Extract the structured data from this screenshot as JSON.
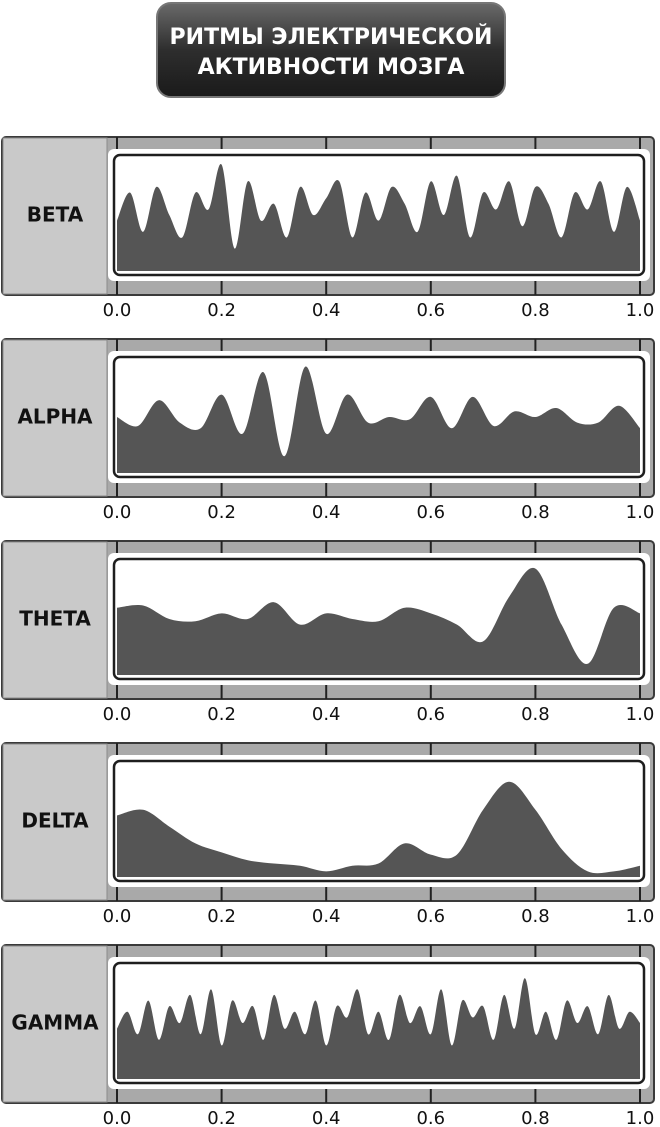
{
  "title": {
    "lines": [
      "РИТМЫ ЭЛЕКТРИЧЕСКОЙ",
      "АКТИВНОСТИ МОЗГА"
    ]
  },
  "chart_data": [
    {
      "type": "area",
      "title": "BETA",
      "color": "#555555",
      "xlim": [
        0,
        1
      ],
      "ylim": [
        0,
        1
      ],
      "xticks": [
        {
          "value": 0,
          "label": "0.0"
        },
        0.2,
        0.4,
        0.6,
        0.8,
        {
          "value": 1,
          "label": "1.0"
        }
      ],
      "x": [
        0,
        0.025,
        0.05,
        0.075,
        0.1,
        0.125,
        0.15,
        0.175,
        0.2,
        0.225,
        0.25,
        0.275,
        0.3,
        0.325,
        0.35,
        0.375,
        0.4,
        0.425,
        0.45,
        0.475,
        0.5,
        0.525,
        0.55,
        0.575,
        0.6,
        0.625,
        0.65,
        0.675,
        0.7,
        0.725,
        0.75,
        0.775,
        0.8,
        0.825,
        0.85,
        0.875,
        0.9,
        0.925,
        0.95,
        0.975,
        1
      ],
      "values": [
        0.45,
        0.7,
        0.35,
        0.75,
        0.5,
        0.3,
        0.7,
        0.55,
        0.95,
        0.2,
        0.8,
        0.45,
        0.6,
        0.3,
        0.75,
        0.5,
        0.65,
        0.8,
        0.3,
        0.7,
        0.45,
        0.75,
        0.6,
        0.35,
        0.8,
        0.5,
        0.85,
        0.3,
        0.7,
        0.55,
        0.8,
        0.4,
        0.75,
        0.6,
        0.3,
        0.7,
        0.55,
        0.8,
        0.35,
        0.75,
        0.45
      ]
    },
    {
      "type": "area",
      "title": "ALPHA",
      "color": "#555555",
      "xlim": [
        0,
        1
      ],
      "ylim": [
        0,
        1
      ],
      "xticks": [
        {
          "value": 0,
          "label": "0.0"
        },
        0.2,
        0.4,
        0.6,
        0.8,
        {
          "value": 1,
          "label": "1.0"
        }
      ],
      "x": [
        0,
        0.04,
        0.08,
        0.12,
        0.16,
        0.2,
        0.24,
        0.28,
        0.32,
        0.36,
        0.4,
        0.44,
        0.48,
        0.52,
        0.56,
        0.6,
        0.64,
        0.68,
        0.72,
        0.76,
        0.8,
        0.84,
        0.88,
        0.92,
        0.96,
        1
      ],
      "values": [
        0.5,
        0.42,
        0.65,
        0.45,
        0.4,
        0.7,
        0.35,
        0.9,
        0.15,
        0.95,
        0.35,
        0.7,
        0.45,
        0.5,
        0.48,
        0.68,
        0.4,
        0.68,
        0.42,
        0.55,
        0.5,
        0.58,
        0.45,
        0.45,
        0.6,
        0.4
      ]
    },
    {
      "type": "area",
      "title": "THETA",
      "color": "#555555",
      "xlim": [
        0,
        1
      ],
      "ylim": [
        0,
        1
      ],
      "xticks": [
        {
          "value": 0,
          "label": "0.0"
        },
        0.2,
        0.4,
        0.6,
        0.8,
        {
          "value": 1,
          "label": "1.0"
        }
      ],
      "x": [
        0,
        0.05,
        0.1,
        0.15,
        0.2,
        0.25,
        0.3,
        0.35,
        0.4,
        0.45,
        0.5,
        0.55,
        0.6,
        0.65,
        0.7,
        0.75,
        0.8,
        0.85,
        0.9,
        0.95,
        1
      ],
      "values": [
        0.6,
        0.62,
        0.5,
        0.48,
        0.55,
        0.5,
        0.65,
        0.45,
        0.55,
        0.5,
        0.48,
        0.6,
        0.55,
        0.45,
        0.3,
        0.7,
        0.95,
        0.45,
        0.1,
        0.6,
        0.55
      ]
    },
    {
      "type": "area",
      "title": "DELTA",
      "color": "#555555",
      "xlim": [
        0,
        1
      ],
      "ylim": [
        0,
        1
      ],
      "xticks": [
        {
          "value": 0,
          "label": "0.0"
        },
        0.2,
        0.4,
        0.6,
        0.8,
        {
          "value": 1,
          "label": "1.0"
        }
      ],
      "x": [
        0,
        0.05,
        0.1,
        0.15,
        0.2,
        0.25,
        0.3,
        0.35,
        0.4,
        0.45,
        0.5,
        0.55,
        0.6,
        0.65,
        0.7,
        0.75,
        0.8,
        0.85,
        0.9,
        0.95,
        1
      ],
      "values": [
        0.55,
        0.6,
        0.45,
        0.3,
        0.22,
        0.15,
        0.12,
        0.1,
        0.05,
        0.1,
        0.12,
        0.3,
        0.2,
        0.2,
        0.6,
        0.85,
        0.6,
        0.25,
        0.05,
        0.05,
        0.1
      ]
    },
    {
      "type": "area",
      "title": "GAMMA",
      "color": "#555555",
      "xlim": [
        0,
        1
      ],
      "ylim": [
        0,
        1
      ],
      "xticks": [
        {
          "value": 0,
          "label": "0.0"
        },
        0.2,
        0.4,
        0.6,
        0.8,
        {
          "value": 1,
          "label": "1.0"
        }
      ],
      "x": [
        0,
        0.02,
        0.04,
        0.06,
        0.08,
        0.1,
        0.12,
        0.14,
        0.16,
        0.18,
        0.2,
        0.22,
        0.24,
        0.26,
        0.28,
        0.3,
        0.32,
        0.34,
        0.36,
        0.38,
        0.4,
        0.42,
        0.44,
        0.46,
        0.48,
        0.5,
        0.52,
        0.54,
        0.56,
        0.58,
        0.6,
        0.62,
        0.64,
        0.66,
        0.68,
        0.7,
        0.72,
        0.74,
        0.76,
        0.78,
        0.8,
        0.82,
        0.84,
        0.86,
        0.88,
        0.9,
        0.92,
        0.94,
        0.96,
        0.98,
        1
      ],
      "values": [
        0.45,
        0.6,
        0.4,
        0.7,
        0.35,
        0.65,
        0.5,
        0.75,
        0.4,
        0.8,
        0.3,
        0.7,
        0.5,
        0.65,
        0.35,
        0.75,
        0.45,
        0.6,
        0.4,
        0.7,
        0.3,
        0.65,
        0.55,
        0.8,
        0.4,
        0.6,
        0.35,
        0.75,
        0.5,
        0.65,
        0.4,
        0.8,
        0.3,
        0.7,
        0.55,
        0.65,
        0.35,
        0.75,
        0.45,
        0.9,
        0.4,
        0.6,
        0.35,
        0.7,
        0.5,
        0.65,
        0.4,
        0.75,
        0.45,
        0.6,
        0.5
      ]
    }
  ]
}
